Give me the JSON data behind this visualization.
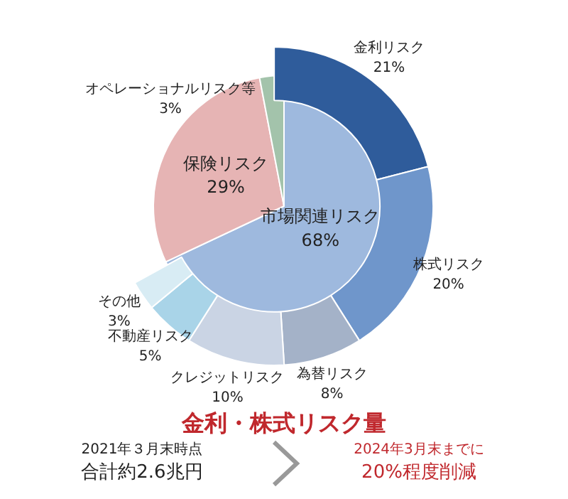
{
  "chart_data": [
    {
      "type": "pie",
      "categories": [
        "市場関連リスク",
        "保険リスク",
        "オペレーショナルリスク等"
      ],
      "values": [
        68,
        29,
        3
      ],
      "colors": [
        "#9eb9de",
        "#e6b4b4",
        "#a3c3ab"
      ],
      "value_labels": [
        "68%",
        "29%",
        "3%"
      ]
    },
    {
      "type": "donut",
      "categories": [
        "金利リスク",
        "株式リスク",
        "為替リスク",
        "クレジットリスク",
        "不動産リスク",
        "その他"
      ],
      "values": [
        21,
        20,
        8,
        10,
        5,
        3
      ],
      "colors": [
        "#2f5c9b",
        "#6f96cb",
        "#a4b2c8",
        "#cad4e4",
        "#a9d4e8",
        "#d8ecf4"
      ],
      "value_labels": [
        "21%",
        "20%",
        "8%",
        "10%",
        "5%",
        "3%"
      ]
    },
    {
      "type": "other",
      "title": "金利・株式リスク量",
      "annotations": [
        "2021年３月末時点",
        "合計約2.6兆円",
        "2024年3月末までに",
        "20%程度削減"
      ]
    }
  ]
}
